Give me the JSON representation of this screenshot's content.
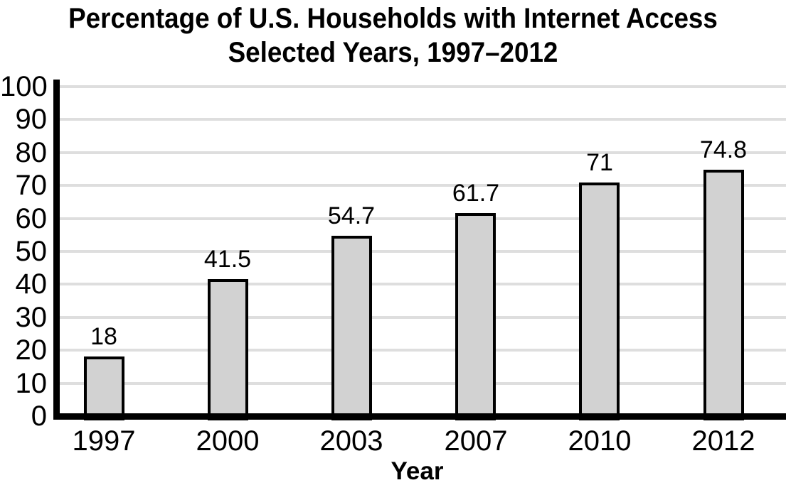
{
  "title": {
    "line1": "Percentage of U.S. Households with Internet Access",
    "line2": "Selected Years, 1997–2012"
  },
  "chart_data": {
    "type": "bar",
    "title": "Percentage of U.S. Households with Internet Access — Selected Years, 1997–2012",
    "categories": [
      "1997",
      "2000",
      "2003",
      "2007",
      "2010",
      "2012"
    ],
    "values": [
      18,
      41.5,
      54.7,
      61.7,
      71,
      74.8
    ],
    "value_labels": [
      "18",
      "41.5",
      "54.7",
      "61.7",
      "71",
      "74.8"
    ],
    "xlabel": "Year",
    "ylabel": "",
    "ylim": [
      0,
      100
    ],
    "y_ticks": [
      0,
      10,
      20,
      30,
      40,
      50,
      60,
      70,
      80,
      90,
      100
    ],
    "grid": "horizontal",
    "legend": "none",
    "colors": {
      "bar_fill": "#d2d2d2",
      "bar_border": "#000000",
      "gridline": "#dedede",
      "axis": "#000000",
      "text": "#000000"
    }
  }
}
